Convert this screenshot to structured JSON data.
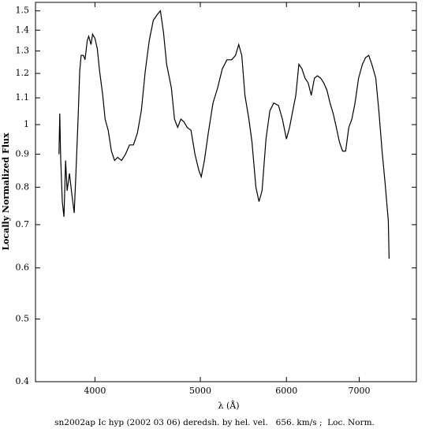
{
  "chart_data": {
    "type": "line",
    "xlabel": "λ (Å)",
    "ylabel": "Locally Normalized Flux",
    "caption": "sn2002ap Ic hyp (2002 03 06) deredsh. by hel. vel.   656. km/s ;  Loc. Norm.",
    "xscale": "log",
    "yscale": "log",
    "xlim": [
      3527,
      7900
    ],
    "ylim": [
      0.4,
      1.546
    ],
    "xticks": [
      4000,
      5000,
      6000,
      7000
    ],
    "yticks": [
      0.4,
      0.5,
      0.6,
      0.7,
      0.8,
      0.9,
      1,
      1.1,
      1.2,
      1.3,
      1.4,
      1.5
    ],
    "color": "#000000",
    "x": [
      3707,
      3713,
      3720,
      3733,
      3746,
      3759,
      3771,
      3790,
      3809,
      3828,
      3841,
      3860,
      3873,
      3885,
      3904,
      3917,
      3936,
      3948,
      3967,
      3980,
      4000,
      4020,
      4040,
      4067,
      4087,
      4114,
      4142,
      4170,
      4197,
      4232,
      4268,
      4304,
      4340,
      4376,
      4413,
      4450,
      4488,
      4526,
      4564,
      4595,
      4625,
      4656,
      4703,
      4734,
      4766,
      4798,
      4830,
      4862,
      4902,
      4943,
      4984,
      5010,
      5043,
      5085,
      5136,
      5187,
      5238,
      5290,
      5343,
      5387,
      5423,
      5459,
      5495,
      5541,
      5578,
      5624,
      5661,
      5698,
      5746,
      5793,
      5841,
      5900,
      5949,
      6000,
      6040,
      6080,
      6120,
      6160,
      6200,
      6241,
      6283,
      6324,
      6366,
      6408,
      6451,
      6494,
      6537,
      6580,
      6624,
      6668,
      6712,
      6757,
      6801,
      6847,
      6892,
      6938,
      6990,
      7048,
      7095,
      7142,
      7189,
      7249,
      7297,
      7346,
      7395,
      7444,
      7457
    ],
    "values": [
      0.9,
      1.04,
      0.89,
      0.76,
      0.72,
      0.88,
      0.79,
      0.84,
      0.78,
      0.73,
      0.83,
      1.02,
      1.21,
      1.28,
      1.28,
      1.26,
      1.35,
      1.37,
      1.33,
      1.38,
      1.36,
      1.31,
      1.21,
      1.11,
      1.02,
      0.98,
      0.91,
      0.88,
      0.89,
      0.88,
      0.9,
      0.93,
      0.93,
      0.97,
      1.05,
      1.21,
      1.35,
      1.45,
      1.48,
      1.5,
      1.39,
      1.24,
      1.14,
      1.02,
      0.99,
      1.02,
      1.01,
      0.99,
      0.98,
      0.9,
      0.85,
      0.83,
      0.88,
      0.97,
      1.08,
      1.14,
      1.22,
      1.26,
      1.26,
      1.28,
      1.33,
      1.28,
      1.11,
      1.02,
      0.94,
      0.8,
      0.76,
      0.79,
      0.95,
      1.05,
      1.08,
      1.07,
      1.02,
      0.95,
      0.99,
      1.05,
      1.11,
      1.24,
      1.22,
      1.18,
      1.16,
      1.11,
      1.18,
      1.19,
      1.18,
      1.16,
      1.13,
      1.08,
      1.04,
      0.99,
      0.94,
      0.91,
      0.91,
      0.99,
      1.02,
      1.08,
      1.18,
      1.24,
      1.27,
      1.28,
      1.24,
      1.18,
      1.05,
      0.91,
      0.81,
      0.71,
      0.62
    ]
  }
}
